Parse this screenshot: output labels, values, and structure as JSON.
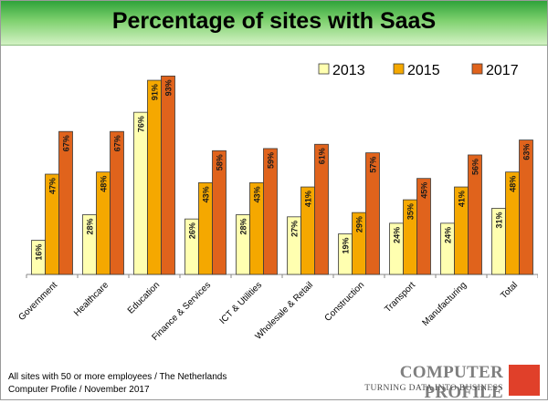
{
  "title": "Percentage of sites with SaaS",
  "footnote": {
    "line1": "All sites with 50 or more employees / The Netherlands",
    "line2": "Computer Profile / November 2017"
  },
  "logo": {
    "name": "COMPUTER PROFILE",
    "tagline": "TURNING DATA INTO BUSINESS",
    "color": "#e0402a"
  },
  "chart_data": {
    "type": "bar",
    "title": "Percentage of sites with SaaS",
    "categories": [
      "Government",
      "Healthcare",
      "Education",
      "Finance & Services",
      "ICT & Utilities",
      "Wholesale & Retail",
      "Construction",
      "Transport",
      "Manufacturing",
      "Total"
    ],
    "series": [
      {
        "name": "2013",
        "color": "#ffffb0",
        "values": [
          16,
          28,
          76,
          26,
          28,
          27,
          19,
          24,
          24,
          31
        ]
      },
      {
        "name": "2015",
        "color": "#f5a800",
        "values": [
          47,
          48,
          91,
          43,
          43,
          41,
          29,
          35,
          41,
          48
        ]
      },
      {
        "name": "2017",
        "color": "#e0631c",
        "values": [
          67,
          67,
          93,
          58,
          59,
          61,
          57,
          45,
          56,
          63
        ]
      }
    ],
    "value_suffix": "%",
    "ylim": [
      0,
      100
    ],
    "legend_position": "top-right",
    "grid": false,
    "xlabel": "",
    "ylabel": ""
  }
}
